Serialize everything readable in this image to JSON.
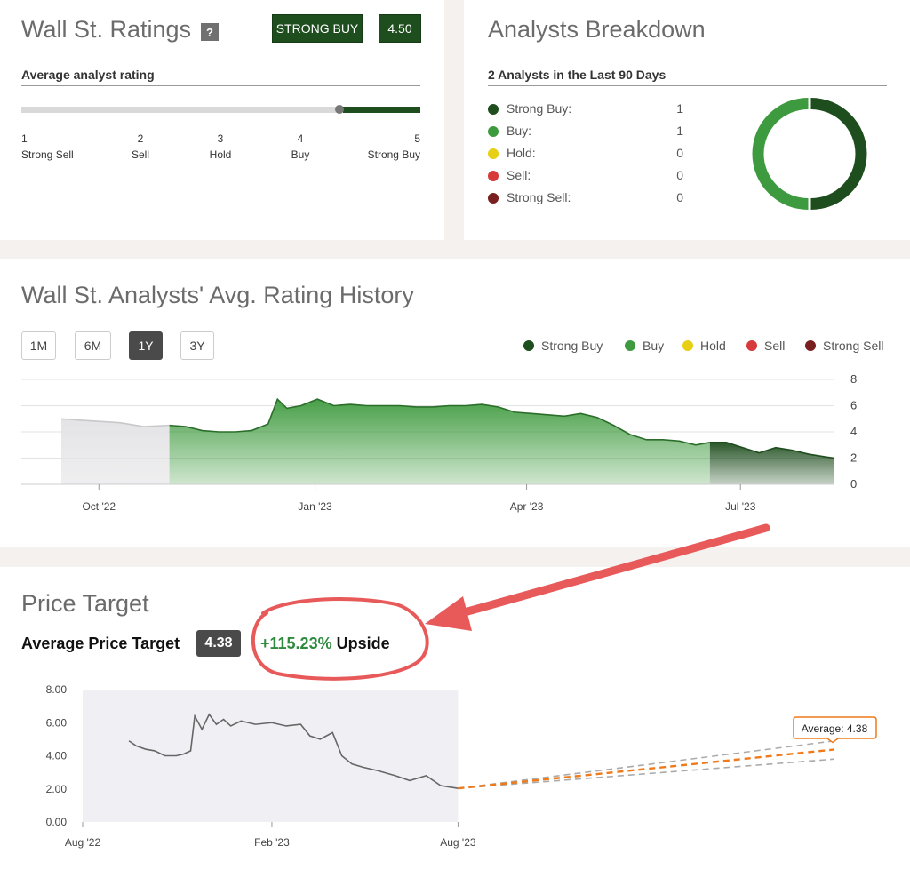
{
  "ratings": {
    "title": "Wall St. Ratings",
    "help": "?",
    "consensus_label": "STRONG BUY",
    "score": "4.50",
    "subtitle": "Average analyst rating",
    "scale": [
      {
        "num": "1",
        "label": "Strong Sell"
      },
      {
        "num": "2",
        "label": "Sell"
      },
      {
        "num": "3",
        "label": "Hold"
      },
      {
        "num": "4",
        "label": "Buy"
      },
      {
        "num": "5",
        "label": "Strong Buy"
      }
    ],
    "colors": {
      "track": "#d9d9d9",
      "fill": "#1e4d1e",
      "marker": "#777777"
    }
  },
  "breakdown": {
    "title": "Analysts Breakdown",
    "subtitle": "2 Analysts in the Last 90 Days",
    "items": [
      {
        "label": "Strong Buy:",
        "count": "1",
        "color": "#1e4d1e"
      },
      {
        "label": "Buy:",
        "count": "1",
        "color": "#3e9a3e"
      },
      {
        "label": "Hold:",
        "count": "0",
        "color": "#e6cf14"
      },
      {
        "label": "Sell:",
        "count": "0",
        "color": "#d63a3a"
      },
      {
        "label": "Strong Sell:",
        "count": "0",
        "color": "#7a1f1f"
      }
    ]
  },
  "history": {
    "title": "Wall St. Analysts' Avg. Rating History",
    "ranges": [
      {
        "label": "1M",
        "active": false
      },
      {
        "label": "6M",
        "active": false
      },
      {
        "label": "1Y",
        "active": true
      },
      {
        "label": "3Y",
        "active": false
      }
    ],
    "legend": [
      {
        "label": "Strong Buy",
        "color": "#1e4d1e"
      },
      {
        "label": "Buy",
        "color": "#3e9a3e"
      },
      {
        "label": "Hold",
        "color": "#e6cf14"
      },
      {
        "label": "Sell",
        "color": "#d63a3a"
      },
      {
        "label": "Strong Sell",
        "color": "#7a1f1f"
      }
    ]
  },
  "price_target": {
    "title": "Price Target",
    "avg_label": "Average Price Target",
    "avg_value": "4.38",
    "upside_value": "+115.23%",
    "upside_label": "Upside",
    "callout": "Average: 4.38"
  },
  "chart_data": [
    {
      "type": "area",
      "x_ticks": [
        "Oct '22",
        "Jan '23",
        "Apr '23",
        "Jul '23"
      ],
      "y_ticks": [
        0,
        2,
        4,
        6,
        8
      ],
      "ylim": [
        0,
        8
      ],
      "x_range": [
        "2022-08-29",
        "2023-08-10"
      ],
      "segments": [
        {
          "from": "2022-09-15",
          "to": "2022-10-31",
          "color": "#e4e4e6",
          "line": "#c8c8ca"
        },
        {
          "from": "2022-10-31",
          "to": "2023-06-18",
          "color": "#3e9a3e",
          "line": "#2b6e2b"
        },
        {
          "from": "2023-06-18",
          "to": "2023-08-10",
          "color": "#1e4d1e",
          "line": "#1e4d1e"
        }
      ],
      "points": [
        [
          "2022-09-15",
          5.0
        ],
        [
          "2022-09-22",
          4.9
        ],
        [
          "2022-10-01",
          4.8
        ],
        [
          "2022-10-10",
          4.7
        ],
        [
          "2022-10-20",
          4.4
        ],
        [
          "2022-10-31",
          4.5
        ],
        [
          "2022-11-07",
          4.4
        ],
        [
          "2022-11-14",
          4.1
        ],
        [
          "2022-11-21",
          4.0
        ],
        [
          "2022-11-28",
          4.0
        ],
        [
          "2022-12-05",
          4.1
        ],
        [
          "2022-12-12",
          4.6
        ],
        [
          "2022-12-16",
          6.5
        ],
        [
          "2022-12-20",
          5.8
        ],
        [
          "2022-12-26",
          6.0
        ],
        [
          "2023-01-02",
          6.5
        ],
        [
          "2023-01-09",
          6.0
        ],
        [
          "2023-01-16",
          6.1
        ],
        [
          "2023-01-23",
          6.0
        ],
        [
          "2023-01-30",
          6.0
        ],
        [
          "2023-02-06",
          6.0
        ],
        [
          "2023-02-13",
          5.9
        ],
        [
          "2023-02-20",
          5.9
        ],
        [
          "2023-02-27",
          6.0
        ],
        [
          "2023-03-06",
          6.0
        ],
        [
          "2023-03-13",
          6.1
        ],
        [
          "2023-03-20",
          5.9
        ],
        [
          "2023-03-27",
          5.5
        ],
        [
          "2023-04-03",
          5.4
        ],
        [
          "2023-04-10",
          5.3
        ],
        [
          "2023-04-17",
          5.2
        ],
        [
          "2023-04-24",
          5.4
        ],
        [
          "2023-05-01",
          5.1
        ],
        [
          "2023-05-08",
          4.5
        ],
        [
          "2023-05-15",
          3.8
        ],
        [
          "2023-05-22",
          3.4
        ],
        [
          "2023-05-29",
          3.4
        ],
        [
          "2023-06-05",
          3.3
        ],
        [
          "2023-06-12",
          3.0
        ],
        [
          "2023-06-18",
          3.2
        ],
        [
          "2023-06-25",
          3.2
        ],
        [
          "2023-07-02",
          2.8
        ],
        [
          "2023-07-09",
          2.4
        ],
        [
          "2023-07-16",
          2.8
        ],
        [
          "2023-07-23",
          2.6
        ],
        [
          "2023-07-30",
          2.3
        ],
        [
          "2023-08-06",
          2.1
        ],
        [
          "2023-08-10",
          2.0
        ]
      ]
    },
    {
      "type": "line",
      "x_ticks": [
        "Aug '22",
        "Feb '23",
        "Aug '23"
      ],
      "y_ticks": [
        "0.00",
        "2.00",
        "4.00",
        "6.00",
        "8.00"
      ],
      "ylim": [
        0,
        8
      ],
      "x_range": [
        "2022-08-01",
        "2024-08-01"
      ],
      "history_end": "2023-08-01",
      "series": [
        {
          "color": "#666666",
          "points": [
            [
              "2022-09-15",
              4.9
            ],
            [
              "2022-09-22",
              4.6
            ],
            [
              "2022-10-01",
              4.4
            ],
            [
              "2022-10-10",
              4.3
            ],
            [
              "2022-10-20",
              4.0
            ],
            [
              "2022-10-31",
              4.0
            ],
            [
              "2022-11-07",
              4.1
            ],
            [
              "2022-11-14",
              4.3
            ],
            [
              "2022-11-18",
              6.4
            ],
            [
              "2022-11-25",
              5.6
            ],
            [
              "2022-12-02",
              6.5
            ],
            [
              "2022-12-09",
              5.9
            ],
            [
              "2022-12-16",
              6.2
            ],
            [
              "2022-12-23",
              5.8
            ],
            [
              "2023-01-02",
              6.1
            ],
            [
              "2023-01-16",
              5.9
            ],
            [
              "2023-02-01",
              6.0
            ],
            [
              "2023-02-15",
              5.8
            ],
            [
              "2023-03-01",
              5.9
            ],
            [
              "2023-03-10",
              5.2
            ],
            [
              "2023-03-20",
              5.0
            ],
            [
              "2023-04-01",
              5.4
            ],
            [
              "2023-04-10",
              4.0
            ],
            [
              "2023-04-20",
              3.5
            ],
            [
              "2023-05-01",
              3.3
            ],
            [
              "2023-05-15",
              3.1
            ],
            [
              "2023-06-01",
              2.8
            ],
            [
              "2023-06-15",
              2.5
            ],
            [
              "2023-07-01",
              2.8
            ],
            [
              "2023-07-15",
              2.2
            ],
            [
              "2023-08-01",
              2.03
            ]
          ]
        }
      ],
      "forecast": {
        "start": [
          "2023-08-01",
          2.03
        ],
        "end_date": "2024-08-01",
        "high": 4.9,
        "average": 4.38,
        "low": 3.8,
        "average_color": "#f07a1a",
        "band_color": "#aaaaaa"
      }
    }
  ]
}
